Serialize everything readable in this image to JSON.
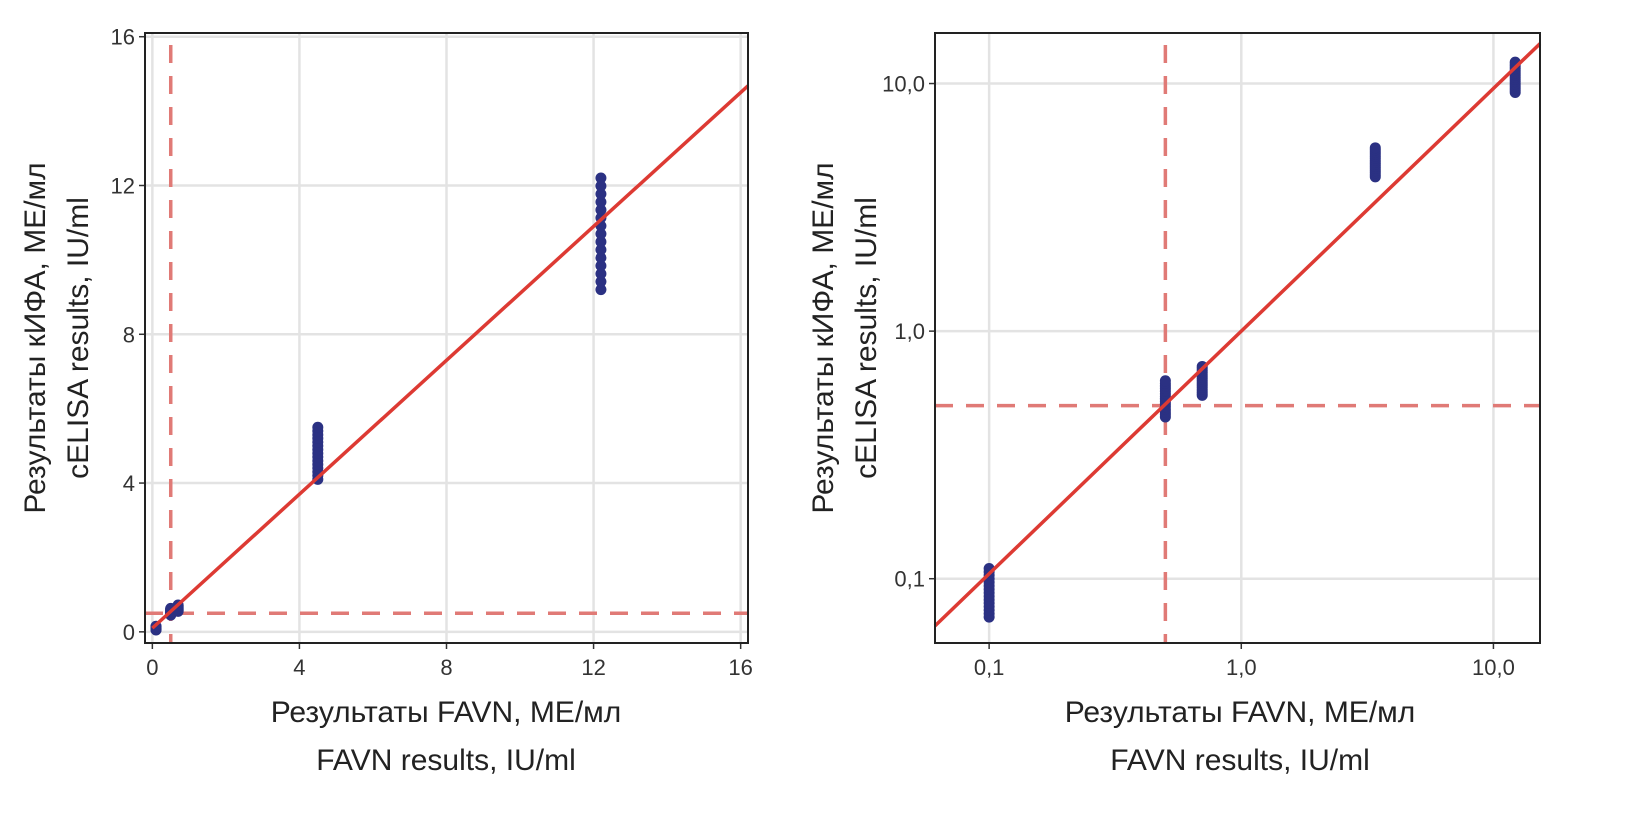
{
  "chart_data": [
    {
      "type": "scatter",
      "scale": "linear",
      "xlabel": [
        "Результаты FAVN, МЕ/мл",
        "FAVN results, IU/ml"
      ],
      "ylabel": [
        "Результаты кИФА, МЕ/мл",
        "cELISA results, IU/ml"
      ],
      "xlim": [
        -0.2,
        16.2
      ],
      "ylim": [
        -0.3,
        16.1
      ],
      "xticks": [
        0,
        4,
        8,
        12,
        16
      ],
      "yticks": [
        0,
        4,
        8,
        12,
        16
      ],
      "xtick_labels": [
        "0",
        "4",
        "8",
        "12",
        "16"
      ],
      "ytick_labels": [
        "0",
        "4",
        "8",
        "12",
        "16"
      ],
      "grid": true,
      "groups": [
        {
          "x": 0.1,
          "y": [
            0.05,
            0.08,
            0.1,
            0.12,
            0.15
          ]
        },
        {
          "x": 0.5,
          "y": [
            0.45,
            0.5,
            0.55,
            0.6,
            0.63
          ]
        },
        {
          "x": 0.7,
          "y": [
            0.55,
            0.6,
            0.65,
            0.7,
            0.72
          ]
        },
        {
          "x": 4.5,
          "y": [
            4.1,
            4.3,
            4.5,
            4.7,
            4.9,
            5.1,
            5.3,
            5.5
          ]
        },
        {
          "x": 12.2,
          "y": [
            9.2,
            9.6,
            9.9,
            10.2,
            10.5,
            10.8,
            11.1,
            11.3,
            11.6,
            11.9,
            12.2
          ]
        }
      ],
      "regression": {
        "slope": 0.9,
        "intercept": 0.1
      },
      "cutoff": {
        "x": 0.5,
        "y": 0.5
      }
    },
    {
      "type": "scatter",
      "scale": "log",
      "xlabel": [
        "Результаты FAVN, МЕ/мл",
        "FAVN results, IU/ml"
      ],
      "ylabel": [
        "Результаты кИФА, МЕ/мл",
        "cELISA results, IU/ml"
      ],
      "xlim": [
        0.061,
        15.3
      ],
      "ylim": [
        0.055,
        16
      ],
      "xticks": [
        0.1,
        1,
        10
      ],
      "yticks": [
        0.1,
        1,
        10
      ],
      "xtick_labels": [
        "0,1",
        "1,0",
        "10,0"
      ],
      "ytick_labels": [
        "0,1",
        "1,0",
        "10,0"
      ],
      "grid": true,
      "groups": [
        {
          "x": 0.1,
          "y": [
            0.07,
            0.08,
            0.09,
            0.1,
            0.11
          ]
        },
        {
          "x": 0.5,
          "y": [
            0.45,
            0.5,
            0.55,
            0.6,
            0.63
          ]
        },
        {
          "x": 0.7,
          "y": [
            0.55,
            0.6,
            0.65,
            0.7,
            0.72
          ]
        },
        {
          "x": 3.4,
          "y": [
            4.2,
            4.5,
            4.8,
            5.1,
            5.5
          ]
        },
        {
          "x": 12.2,
          "y": [
            9.2,
            9.8,
            10.4,
            11.0,
            11.6,
            12.2
          ]
        }
      ],
      "regression": {
        "log_slope": 0.98,
        "log_intercept": -0.0
      },
      "cutoff": {
        "x": 0.5,
        "y": 0.5
      }
    }
  ],
  "colors": {
    "points": "#2b3183",
    "line": "#dd3a33",
    "cutoff": "#e07a76",
    "grid": "#e3e3e3"
  }
}
